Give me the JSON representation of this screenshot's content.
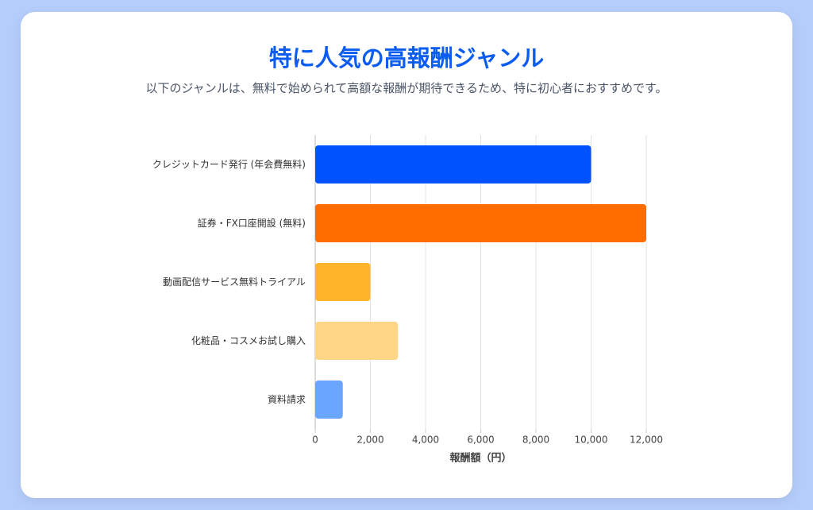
{
  "chart_data": {
    "type": "hbar",
    "title": "特に人気の高報酬ジャンル",
    "subtitle": "以下のジャンルは、無料で始められて高額な報酬が期待できるため、特に初心者におすすめです。",
    "x_label": "報酬額（円）",
    "categories": [
      "クレジットカード発行 (年会費無料)",
      "証券・FX口座開設 (無料)",
      "動画配信サービス無料トライアル",
      "化粧品・コスメお試し購入",
      "資料請求"
    ],
    "values": [
      10000,
      12000,
      2000,
      3000,
      1000
    ],
    "colors": [
      "#0052ff",
      "#ff6d00",
      "#ffb42a",
      "#ffd588",
      "#6aa6ff"
    ],
    "xlim": [
      0,
      12000
    ],
    "xticks": [
      0,
      {
        "value": 2000,
        "label": "2,000"
      },
      {
        "value": 4000,
        "label": "4,000"
      },
      {
        "value": 6000,
        "label": "6,000"
      },
      {
        "value": 8000,
        "label": "8,000"
      },
      {
        "value": 10000,
        "label": "10,000"
      },
      {
        "value": 12000,
        "label": "12,000"
      }
    ],
    "grid": true
  }
}
